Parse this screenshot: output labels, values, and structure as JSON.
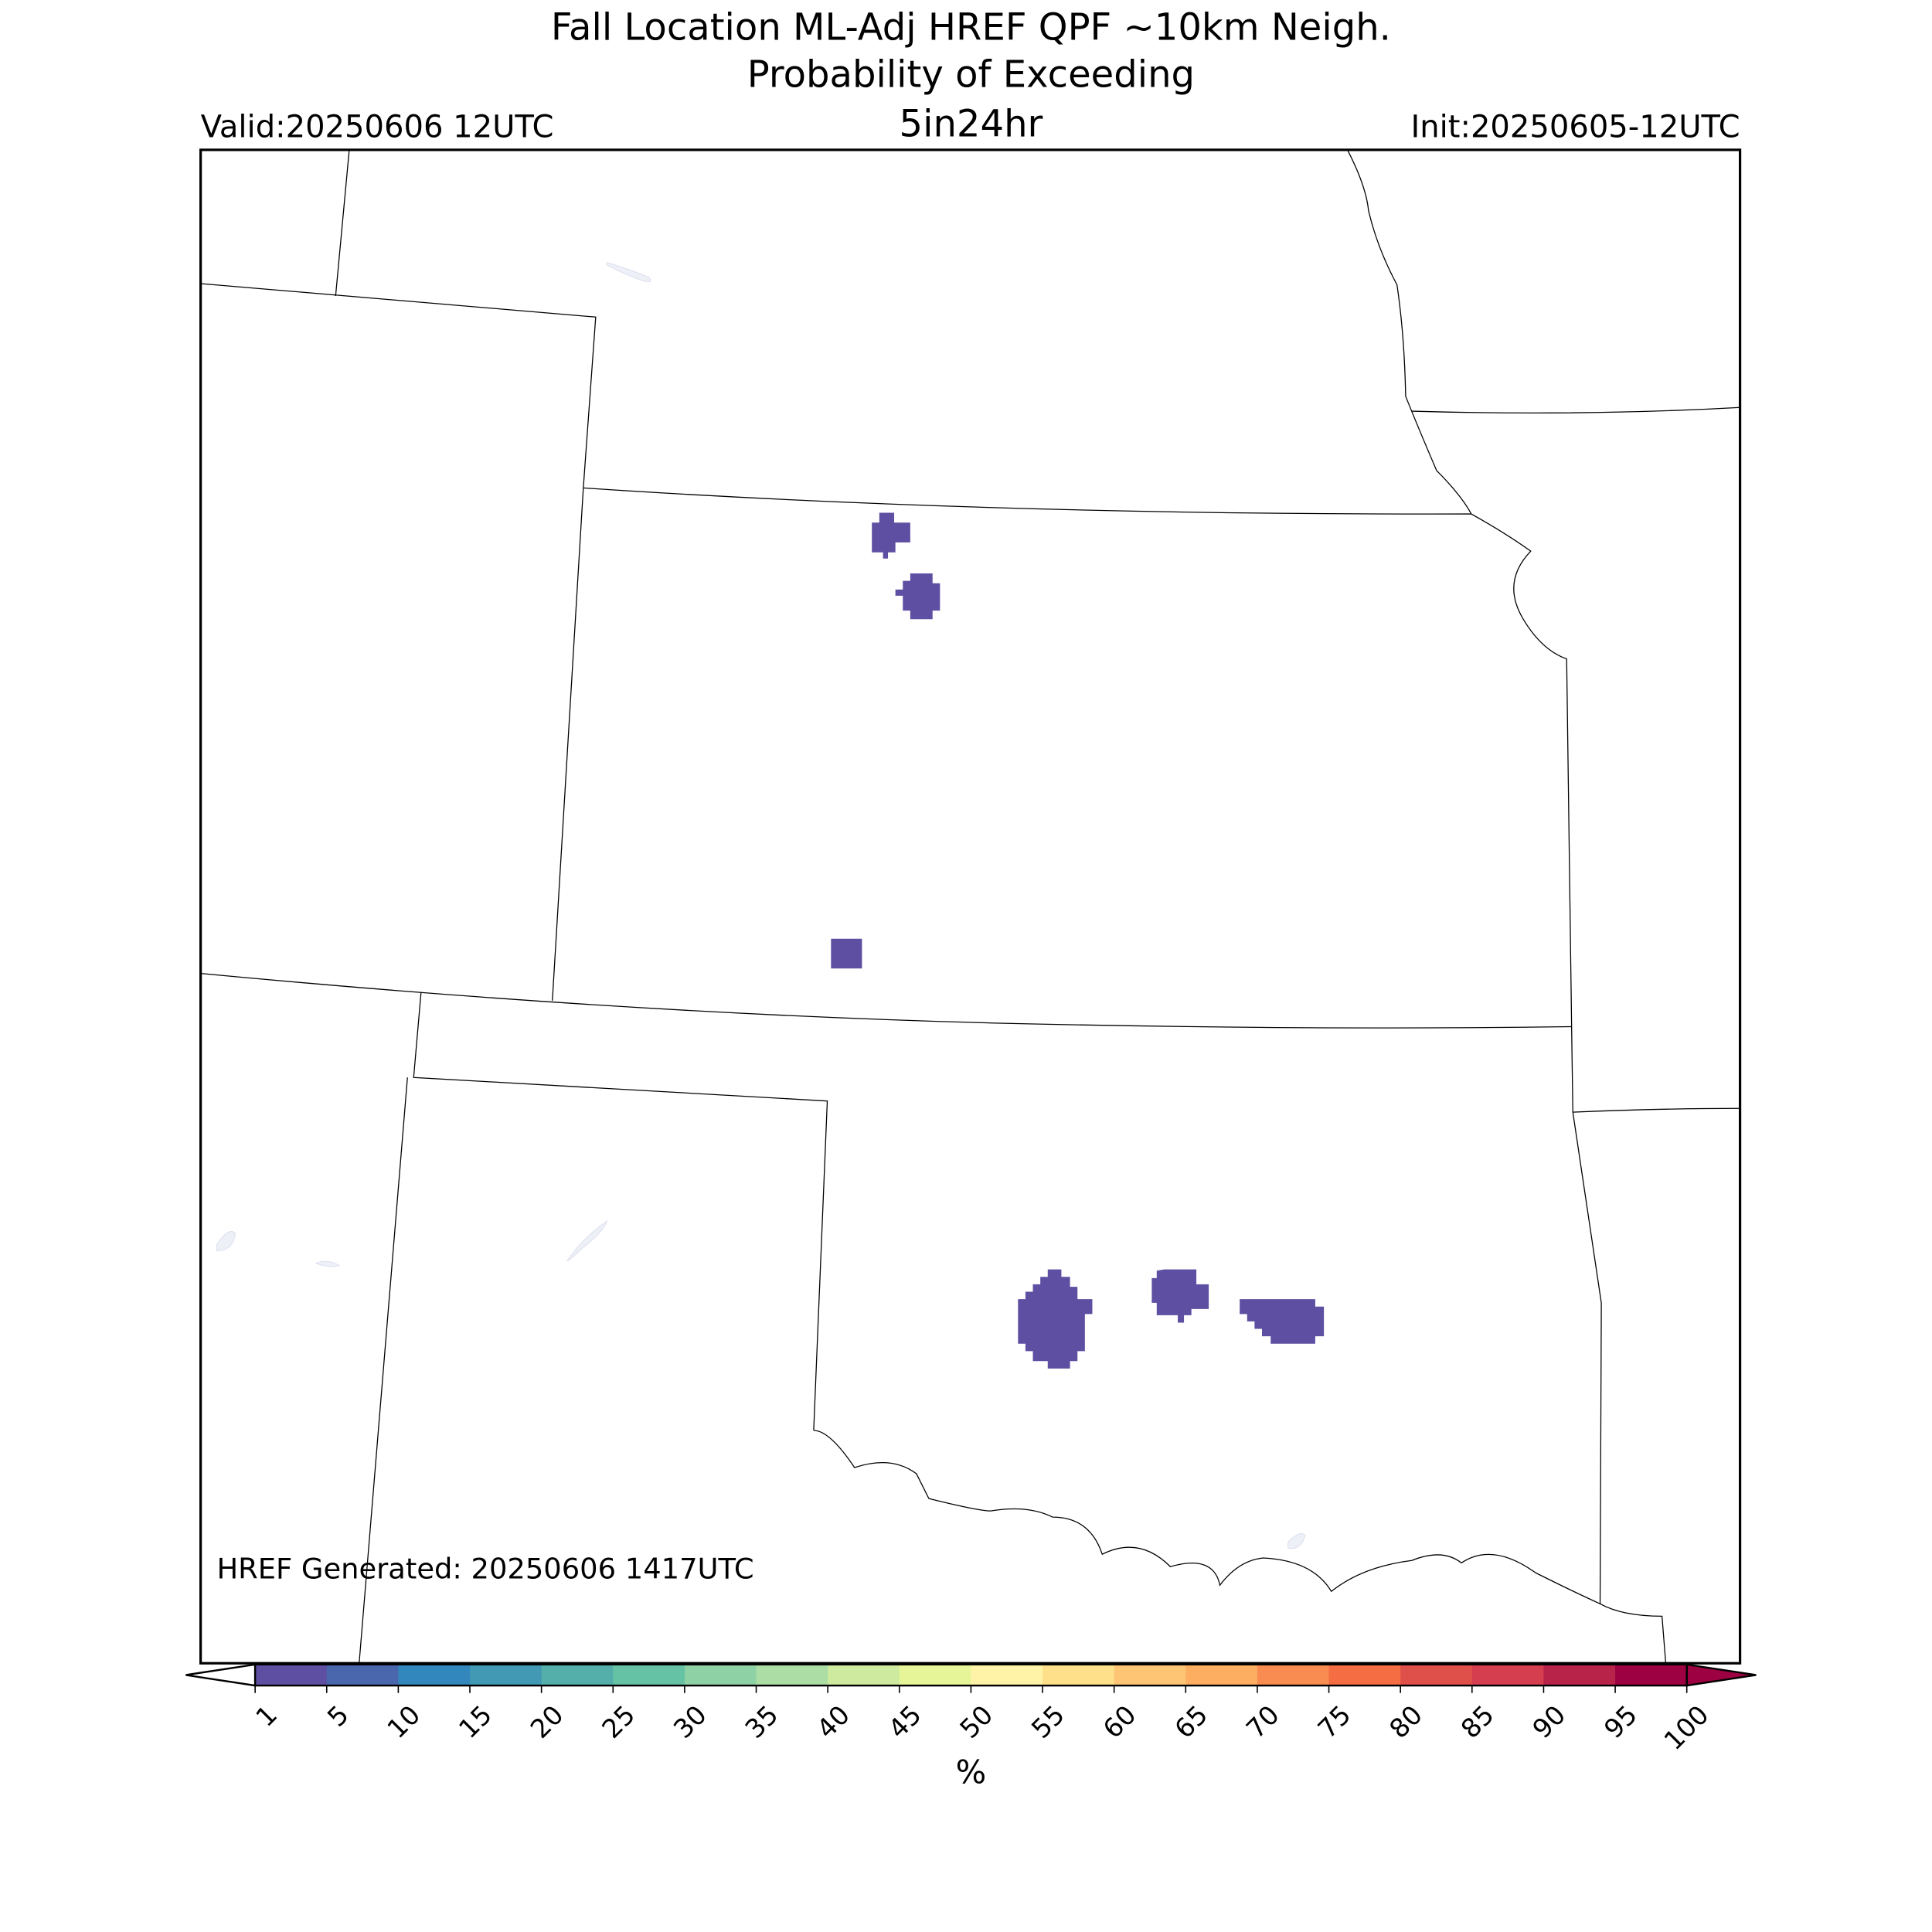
{
  "header": {
    "title_line1": "Fall Location ML-Adj HREF QPF ~10km Neigh.",
    "title_line2": "Probability of Exceeding",
    "threshold": "5in24hr",
    "valid": "Valid:20250606 12UTC",
    "init": "Init:20250605-12UTC"
  },
  "map": {
    "generated": "HREF Generated: 20250606 1417UTC"
  },
  "colorbar": {
    "ticks": [
      1,
      5,
      10,
      15,
      20,
      25,
      30,
      35,
      40,
      45,
      50,
      55,
      60,
      65,
      70,
      75,
      80,
      85,
      90,
      95,
      100
    ],
    "colors": [
      "#5e4fa2",
      "#4a67ae",
      "#3288bd",
      "#4199b4",
      "#54aeaa",
      "#66c2a5",
      "#8ed1a4",
      "#abdda4",
      "#cdea9f",
      "#e6f598",
      "#fff3a8",
      "#fee08b",
      "#fdc574",
      "#fdae61",
      "#f88c51",
      "#f46d43",
      "#e0504a",
      "#d53e4f",
      "#b8234a",
      "#9e0142"
    ],
    "under_color": "#ffffff",
    "over_color": "#9e0142",
    "label": "%"
  }
}
